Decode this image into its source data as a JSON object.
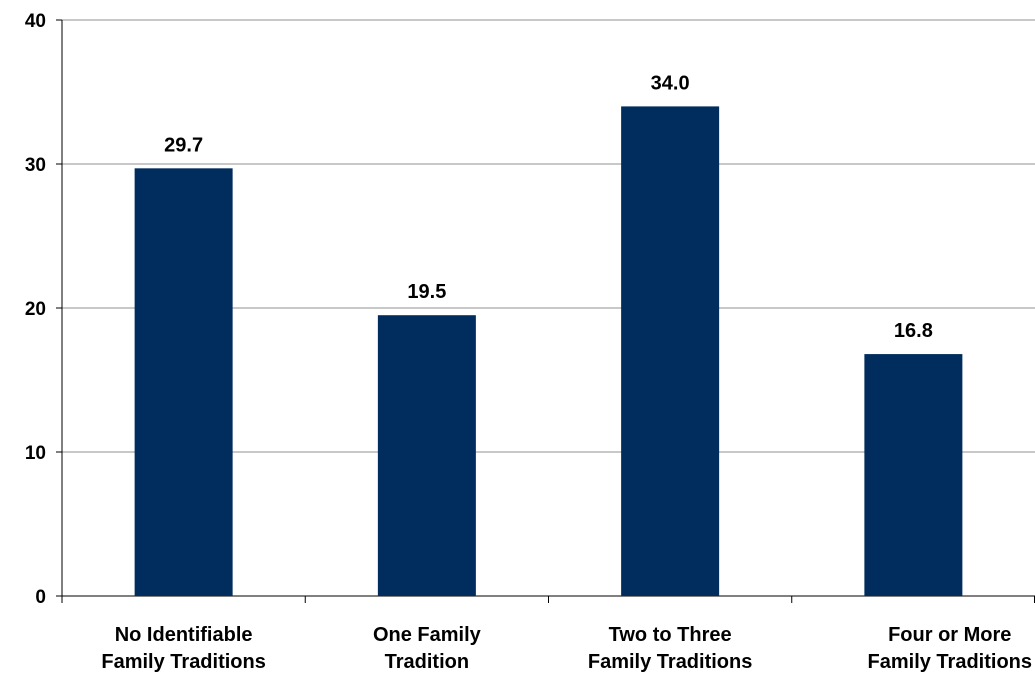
{
  "chart_data": {
    "type": "bar",
    "title": "",
    "xlabel": "",
    "ylabel": "",
    "categories": [
      [
        "No Identifiable",
        "Family Traditions"
      ],
      [
        "One Family",
        "Tradition"
      ],
      [
        "Two to Three",
        "Family Traditions"
      ],
      [
        "Four or More",
        "Family Traditions"
      ]
    ],
    "values": [
      29.7,
      19.5,
      34.0,
      16.8
    ],
    "value_labels": [
      "29.7",
      "19.5",
      "34.0",
      "16.8"
    ],
    "ylim": [
      0,
      40
    ],
    "yticks": [
      "0",
      "10",
      "20",
      "30",
      "40"
    ],
    "grid": true,
    "bar_color": "#002D5E",
    "grid_color": "#A6A6A6"
  }
}
